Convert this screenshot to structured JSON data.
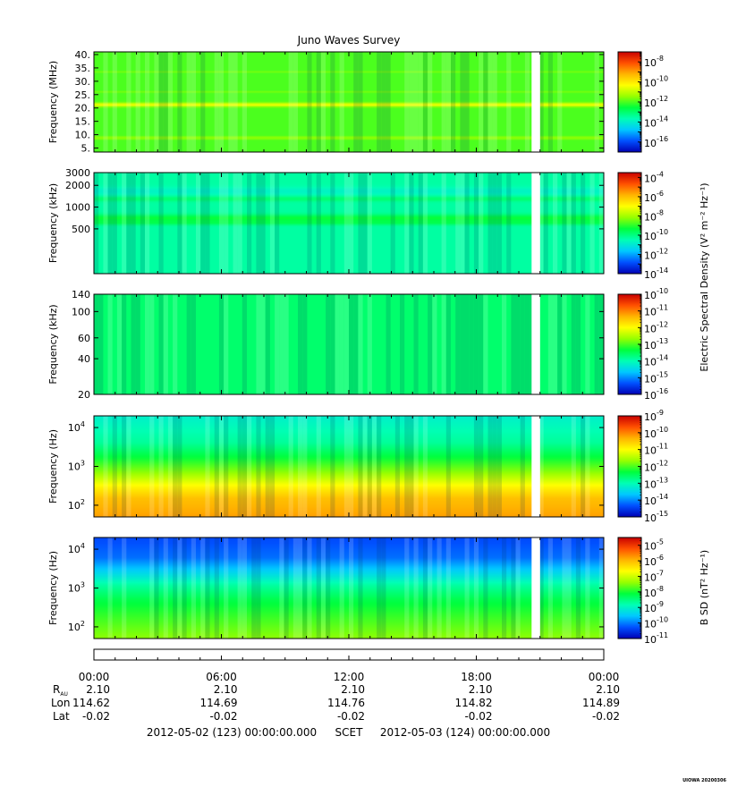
{
  "title": "Juno Waves Survey",
  "footer": {
    "start": "2012-05-02 (123) 00:00:00.000",
    "scet": "SCET",
    "end": "2012-05-03 (124) 00:00:00.000",
    "credit": "UIOWA 20200306"
  },
  "ephemeris": {
    "row_labels": {
      "rau": "R",
      "rau_sub": "AU",
      "lon": "Lon",
      "lat": "Lat"
    },
    "times": [
      "00:00",
      "06:00",
      "12:00",
      "18:00",
      "00:00"
    ],
    "rau": [
      "2.10",
      "2.10",
      "2.10",
      "2.10",
      "2.10"
    ],
    "lon": [
      "114.62",
      "114.69",
      "114.76",
      "114.82",
      "114.89"
    ],
    "lat": [
      "-0.02",
      "-0.02",
      "-0.02",
      "-0.02",
      "-0.02"
    ]
  },
  "colorbar_labels": {
    "electric": "Electric Spectral Density (V² m⁻² Hz⁻¹)",
    "magnetic": "B SD (nT² Hz⁻¹)"
  },
  "colorscale": [
    "#0000b4",
    "#0050ff",
    "#00c8ff",
    "#00ffb4",
    "#00ff3c",
    "#96ff00",
    "#ffff00",
    "#ffb400",
    "#ff5000",
    "#c80000"
  ],
  "chart_data": [
    {
      "type": "heatmap",
      "ylabel": "Frequency (MHz)",
      "yscale": "linear",
      "ylim": [
        3.5,
        41
      ],
      "yticks": [
        {
          "v": 40,
          "label": "40."
        },
        {
          "v": 35,
          "label": "35."
        },
        {
          "v": 30,
          "label": "30."
        },
        {
          "v": 25,
          "label": "25."
        },
        {
          "v": 20,
          "label": "20."
        },
        {
          "v": 15,
          "label": "15."
        },
        {
          "v": 10,
          "label": "10."
        },
        {
          "v": 5,
          "label": "5."
        }
      ],
      "xlim_hours": [
        0,
        24
      ],
      "data_gap_hours": [
        20.6,
        21.0
      ],
      "background_level": 0.5,
      "bands": [
        {
          "at": 21.2,
          "width": 1.2,
          "level": 0.66
        },
        {
          "at": 8.8,
          "width": 0.8,
          "level": 0.57
        },
        {
          "at": 33.5,
          "width": 0.4,
          "level": 0.53
        },
        {
          "at": 26,
          "width": 0.4,
          "level": 0.53
        }
      ],
      "colorbar": {
        "scale": "log",
        "min_exp": -17,
        "max_exp": -7,
        "ticks": [
          -8,
          -10,
          -12,
          -14,
          -16
        ]
      }
    },
    {
      "type": "heatmap",
      "ylabel": "Frequency (kHz)",
      "yscale": "log",
      "ylim": [
        120,
        3000
      ],
      "yticks": [
        {
          "v": 3000,
          "label": "3000"
        },
        {
          "v": 2000,
          "label": "2000"
        },
        {
          "v": 1000,
          "label": "1000"
        },
        {
          "v": 500,
          "label": "500"
        }
      ],
      "xlim_hours": [
        0,
        24
      ],
      "data_gap_hours": [
        20.6,
        21.0
      ],
      "background_level": 0.35,
      "bands": [
        {
          "at": 1650,
          "width": 0.1,
          "level": 0.31
        },
        {
          "at": 1300,
          "width": 0.06,
          "level": 0.4
        },
        {
          "at": 700,
          "width": 0.09,
          "level": 0.45
        },
        {
          "at": 600,
          "width": 0.05,
          "level": 0.41
        }
      ],
      "colorbar": {
        "scale": "log",
        "min_exp": -14,
        "max_exp": -3.5,
        "ticks": [
          -4,
          -6,
          -8,
          -10,
          -12,
          -14
        ]
      }
    },
    {
      "type": "heatmap",
      "ylabel": "Frequency (kHz)",
      "yscale": "log",
      "ylim": [
        20,
        140
      ],
      "yticks": [
        {
          "v": 140,
          "label": "140"
        },
        {
          "v": 100,
          "label": "100"
        },
        {
          "v": 60,
          "label": "60"
        },
        {
          "v": 40,
          "label": "40"
        },
        {
          "v": 20,
          "label": "20"
        }
      ],
      "xlim_hours": [
        0,
        24
      ],
      "data_gap_hours": [
        20.6,
        21.0
      ],
      "background_level": 0.4,
      "bands": [],
      "colorbar": {
        "scale": "log",
        "min_exp": -16,
        "max_exp": -10,
        "ticks": [
          -10,
          -11,
          -12,
          -13,
          -14,
          -15,
          -16
        ]
      }
    },
    {
      "type": "heatmap",
      "ylabel": "Frequency (Hz)",
      "yscale": "log",
      "ylim": [
        50,
        20000
      ],
      "yticks": [
        {
          "v": 10000,
          "label": "10",
          "exp": "4"
        },
        {
          "v": 1000,
          "label": "10",
          "exp": "3"
        },
        {
          "v": 100,
          "label": "10",
          "exp": "2"
        }
      ],
      "xlim_hours": [
        0,
        24
      ],
      "data_gap_hours": [
        20.6,
        21.0
      ],
      "gradient_stops": [
        {
          "v": 20000,
          "level": 0.3
        },
        {
          "v": 4000,
          "level": 0.36
        },
        {
          "v": 1500,
          "level": 0.46
        },
        {
          "v": 700,
          "level": 0.55
        },
        {
          "v": 300,
          "level": 0.68
        },
        {
          "v": 150,
          "level": 0.76
        },
        {
          "v": 50,
          "level": 0.8
        }
      ],
      "colorbar": {
        "scale": "log",
        "min_exp": -15,
        "max_exp": -9,
        "ticks": [
          -9,
          -10,
          -11,
          -12,
          -13,
          -14,
          -15
        ]
      }
    },
    {
      "type": "heatmap",
      "ylabel": "Frequency (Hz)",
      "yscale": "log",
      "ylim": [
        50,
        20000
      ],
      "yticks": [
        {
          "v": 10000,
          "label": "10",
          "exp": "4"
        },
        {
          "v": 1000,
          "label": "10",
          "exp": "3"
        },
        {
          "v": 100,
          "label": "10",
          "exp": "2"
        }
      ],
      "xlim_hours": [
        0,
        24
      ],
      "data_gap_hours": [
        20.6,
        21.0
      ],
      "gradient_stops": [
        {
          "v": 20000,
          "level": 0.1
        },
        {
          "v": 6000,
          "level": 0.14
        },
        {
          "v": 2500,
          "level": 0.25
        },
        {
          "v": 1200,
          "level": 0.35
        },
        {
          "v": 500,
          "level": 0.43
        },
        {
          "v": 200,
          "level": 0.48
        },
        {
          "v": 50,
          "level": 0.55
        }
      ],
      "colorbar": {
        "scale": "log",
        "min_exp": -11,
        "max_exp": -4.5,
        "ticks": [
          -5,
          -6,
          -7,
          -8,
          -9,
          -10,
          -11
        ]
      }
    }
  ]
}
